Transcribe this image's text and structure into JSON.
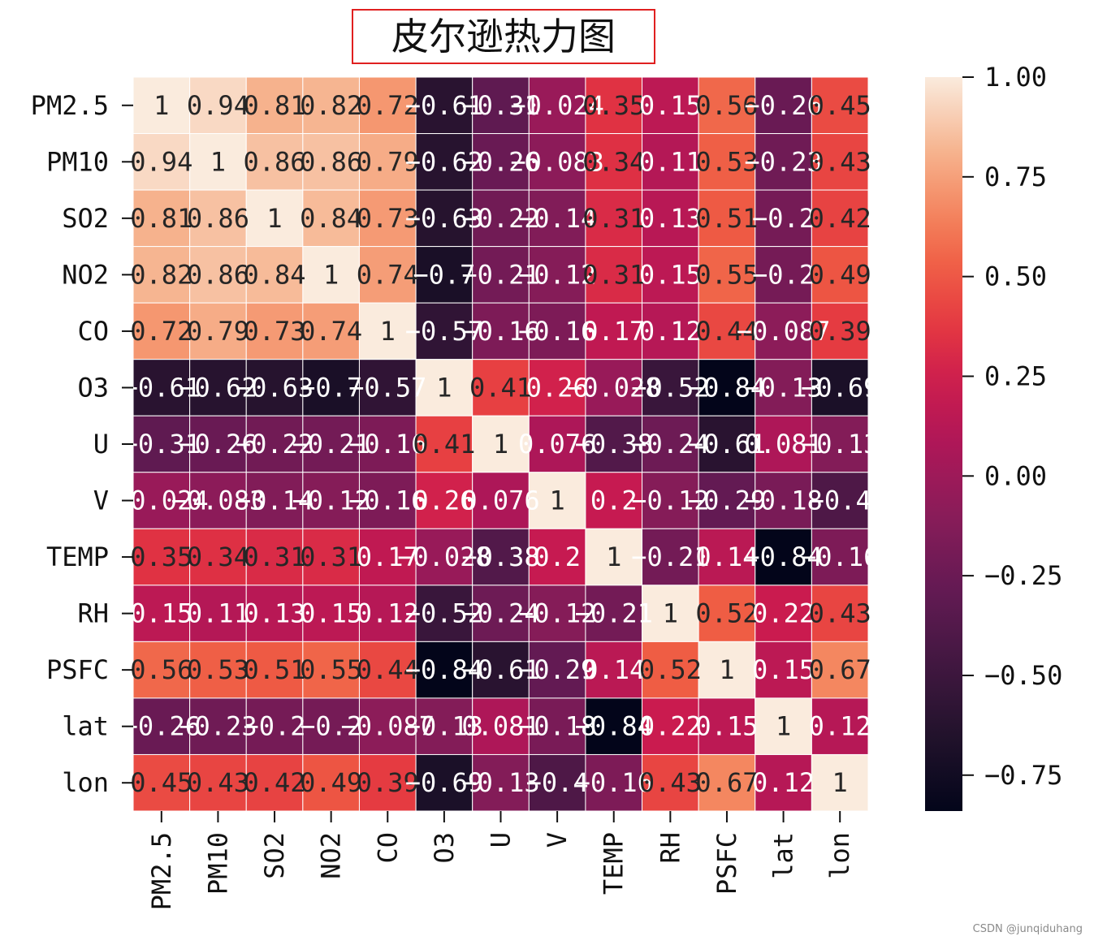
{
  "chart_data": {
    "type": "heatmap",
    "title": "皮尔逊热力图",
    "x_labels": [
      "PM2.5",
      "PM10",
      "SO2",
      "NO2",
      "CO",
      "O3",
      "U",
      "V",
      "TEMP",
      "RH",
      "PSFC",
      "lat",
      "lon"
    ],
    "y_labels": [
      "PM2.5",
      "PM10",
      "SO2",
      "NO2",
      "CO",
      "O3",
      "U",
      "V",
      "TEMP",
      "RH",
      "PSFC",
      "lat",
      "lon"
    ],
    "values": [
      [
        1,
        0.94,
        0.81,
        0.82,
        0.72,
        -0.61,
        -0.31,
        -0.024,
        0.35,
        0.15,
        0.56,
        -0.26,
        0.45
      ],
      [
        0.94,
        1,
        0.86,
        0.86,
        0.79,
        -0.62,
        -0.26,
        -0.083,
        0.34,
        0.11,
        0.53,
        -0.23,
        0.43
      ],
      [
        0.81,
        0.86,
        1,
        0.84,
        0.73,
        -0.63,
        -0.22,
        -0.14,
        0.31,
        0.13,
        0.51,
        -0.2,
        0.42
      ],
      [
        0.82,
        0.86,
        0.84,
        1,
        0.74,
        -0.7,
        -0.21,
        -0.12,
        0.31,
        0.15,
        0.55,
        -0.2,
        0.49
      ],
      [
        0.72,
        0.79,
        0.73,
        0.74,
        1,
        -0.57,
        -0.16,
        -0.16,
        0.17,
        0.12,
        0.44,
        -0.087,
        0.39
      ],
      [
        -0.61,
        -0.62,
        -0.63,
        -0.7,
        -0.57,
        1,
        0.41,
        0.26,
        -0.028,
        -0.52,
        -0.84,
        -0.13,
        -0.69
      ],
      [
        -0.31,
        -0.26,
        -0.22,
        -0.21,
        -0.16,
        0.41,
        1,
        0.076,
        -0.38,
        -0.24,
        -0.61,
        0.081,
        -0.13
      ],
      [
        -0.024,
        -0.083,
        -0.14,
        -0.12,
        -0.16,
        0.26,
        0.076,
        1,
        0.2,
        -0.12,
        -0.29,
        -0.18,
        -0.4
      ],
      [
        0.35,
        0.34,
        0.31,
        0.31,
        0.17,
        -0.028,
        -0.38,
        0.2,
        1,
        -0.21,
        0.14,
        -0.84,
        -0.16
      ],
      [
        0.15,
        0.11,
        0.13,
        0.15,
        0.12,
        -0.52,
        -0.24,
        -0.12,
        -0.21,
        1,
        0.52,
        0.22,
        0.43
      ],
      [
        0.56,
        0.53,
        0.51,
        0.55,
        0.44,
        -0.84,
        -0.61,
        -0.29,
        0.14,
        0.52,
        1,
        0.15,
        0.67
      ],
      [
        -0.26,
        -0.23,
        -0.2,
        -0.2,
        -0.087,
        -0.13,
        0.081,
        -0.18,
        -0.84,
        0.22,
        0.15,
        1,
        0.12
      ],
      [
        0.45,
        0.43,
        0.42,
        0.49,
        0.39,
        -0.69,
        -0.13,
        -0.4,
        -0.16,
        0.43,
        0.67,
        0.12,
        1
      ]
    ],
    "vmin": -0.84,
    "vmax": 1.0,
    "colorbar_ticks": [
      1.0,
      0.75,
      0.5,
      0.25,
      0.0,
      -0.25,
      -0.5,
      -0.75
    ],
    "colorbar_tick_labels": [
      "1.00",
      "0.75",
      "0.50",
      "0.25",
      "0.00",
      "−0.25",
      "−0.50",
      "−0.75"
    ],
    "colormap": "rocket",
    "grid": true,
    "legend": "colorbar-right"
  },
  "watermark": "CSDN @junqiduhang"
}
